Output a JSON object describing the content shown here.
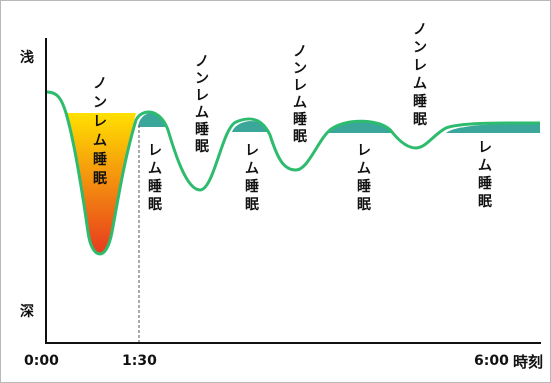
{
  "y_axis": {
    "top_label": "浅",
    "bottom_label": "深"
  },
  "x_axis": {
    "ticks": [
      "0:00",
      "1:30",
      "6:00"
    ],
    "unit_label": "時刻"
  },
  "labels": {
    "nonrem": "ノンレム睡眠",
    "rem": "レム睡眠"
  },
  "colors": {
    "curve": "#2dbb6e",
    "rem_fill": "#3aa79a",
    "deep_fill_top": "#ffe000",
    "deep_fill_bottom": "#e83a1e",
    "axis": "#111111"
  }
}
